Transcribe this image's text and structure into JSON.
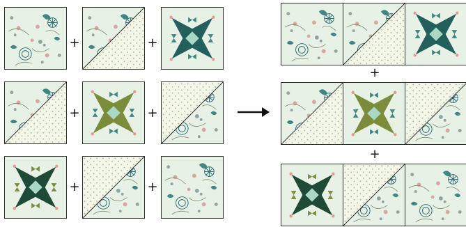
{
  "operators": {
    "plus": "+"
  },
  "colors": {
    "floral_bg": "#e8f1e6",
    "dot_bg": "#f4f7e7",
    "dot": "#94ad8c",
    "teal_dark": "#235f5d",
    "teal": "#3f8685",
    "mint": "#a9d8c4",
    "olive": "#7b8d3a",
    "olive_dark": "#56652a",
    "forest": "#1f4a35",
    "pink": "#e69b8e",
    "border": "#2e2e2e",
    "arrow": "#111111"
  },
  "icons": [
    "arrow-right-icon",
    "plus-icon"
  ],
  "left_grid": [
    [
      "floral",
      "hst-floral-dots",
      "star-teal"
    ],
    [
      "hst-floral-dots",
      "star-olive",
      "hst-dots-floral"
    ],
    [
      "star-green",
      "hst-dots-floral",
      "floral"
    ]
  ],
  "right_rows": [
    [
      "floral",
      "hst-floral-dots",
      "star-teal"
    ],
    [
      "hst-floral-dots",
      "star-olive",
      "hst-dots-floral"
    ],
    [
      "star-green",
      "hst-dots-floral",
      "floral"
    ]
  ]
}
